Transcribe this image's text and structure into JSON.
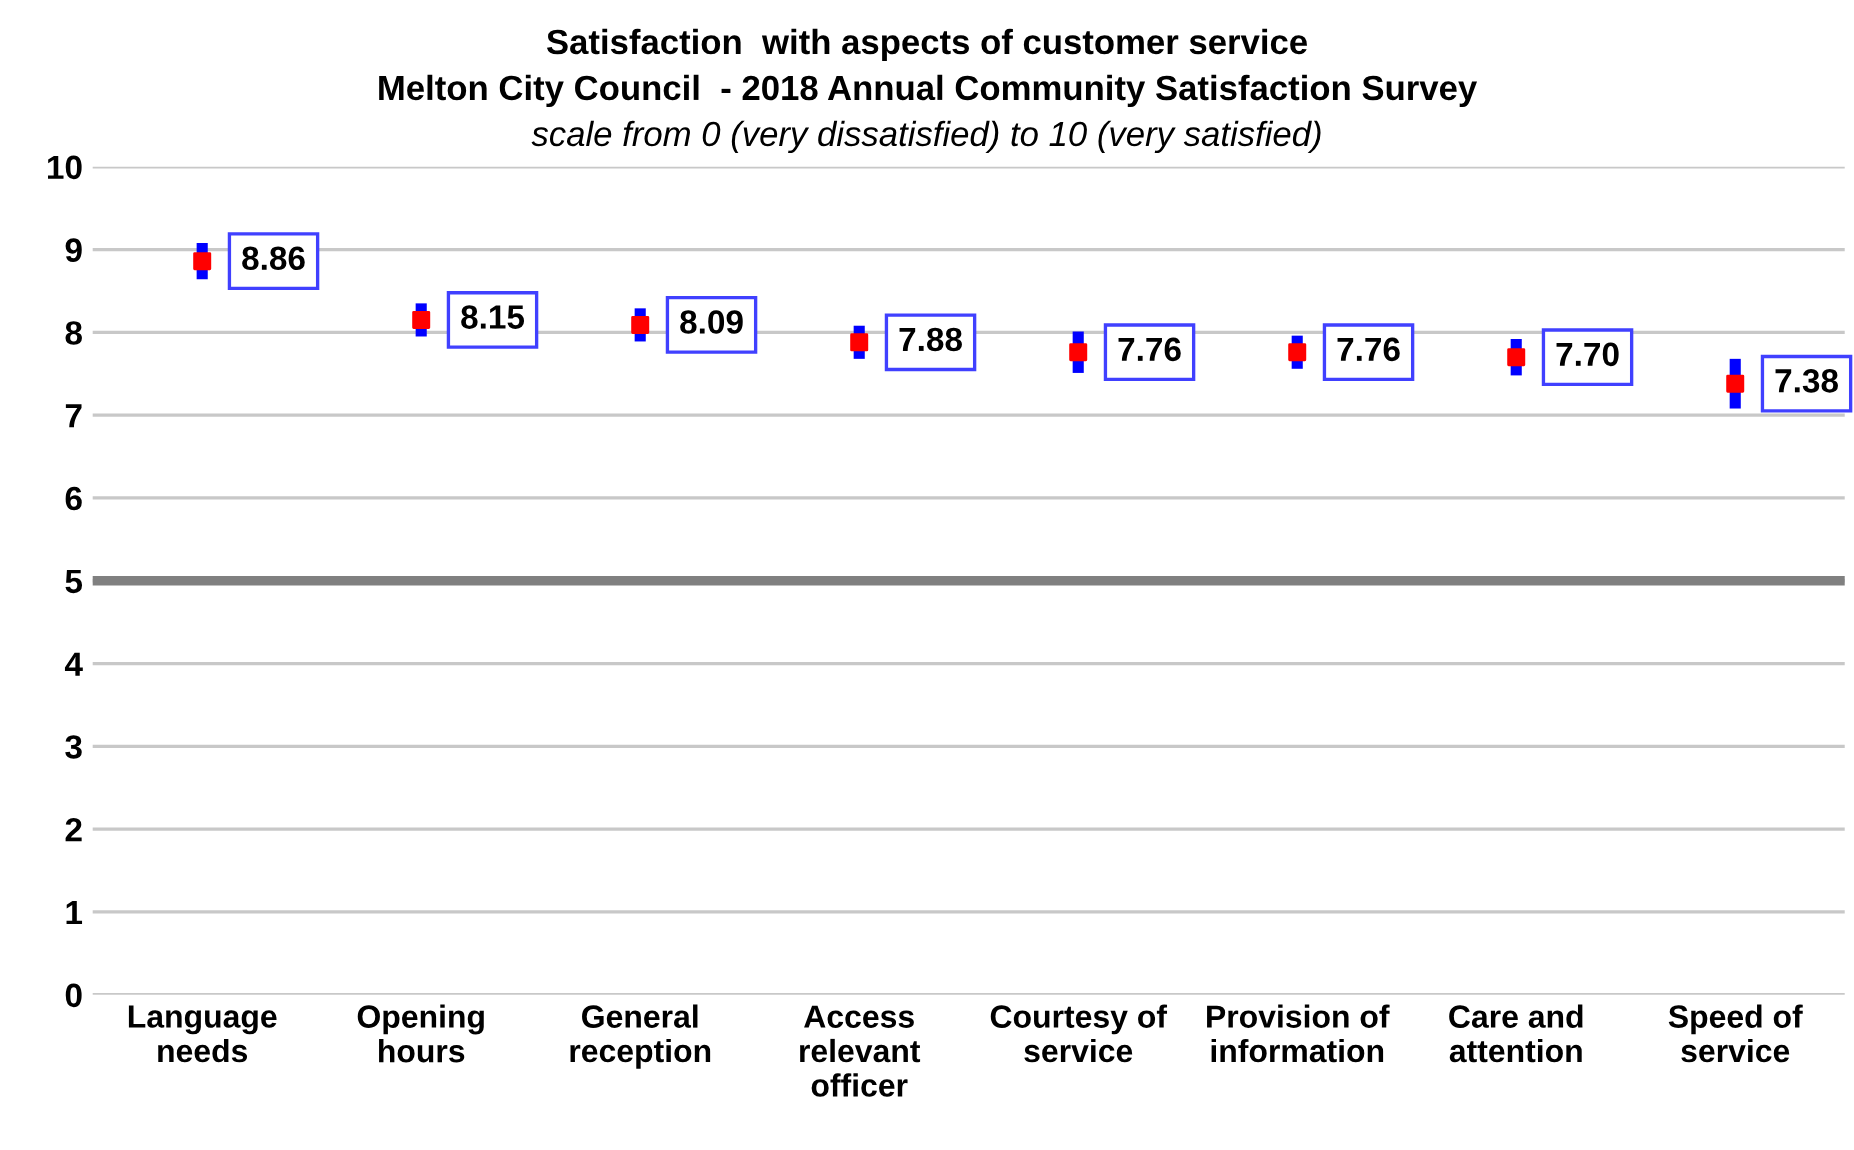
{
  "chart_data": {
    "type": "scatter",
    "title": "Satisfaction  with aspects of customer service\nMelton City Council  - 2018 Annual Community Satisfaction Survey",
    "subtitle": "scale from 0 (very dissatisfied) to 10 (very satisfied)",
    "categories": [
      "Language\nneeds",
      "Opening\nhours",
      "General\nreception",
      "Access\nrelevant\nofficer",
      "Courtesy of\nservice",
      "Provision of\ninformation",
      "Care and\nattention",
      "Speed of\nservice"
    ],
    "series": [
      {
        "color": "#ff0000",
        "values": [
          8.86,
          8.15,
          8.09,
          7.88,
          7.76,
          7.76,
          7.7,
          7.38
        ],
        "errors": [
          0.22,
          0.2,
          0.2,
          0.2,
          0.25,
          0.2,
          0.22,
          0.3
        ]
      }
    ],
    "value_labels": [
      "8.86",
      "8.15",
      "8.09",
      "7.88",
      "7.76",
      "7.76",
      "7.70",
      "7.38"
    ],
    "ylim": [
      0,
      10
    ],
    "yticks": [
      0,
      1,
      2,
      3,
      4,
      5,
      6,
      7,
      8,
      9,
      10
    ],
    "grid": "y",
    "marker": "square",
    "legend": false,
    "ref_lines": [
      {
        "axis": "y",
        "value": 5,
        "color": "#808080"
      }
    ]
  }
}
